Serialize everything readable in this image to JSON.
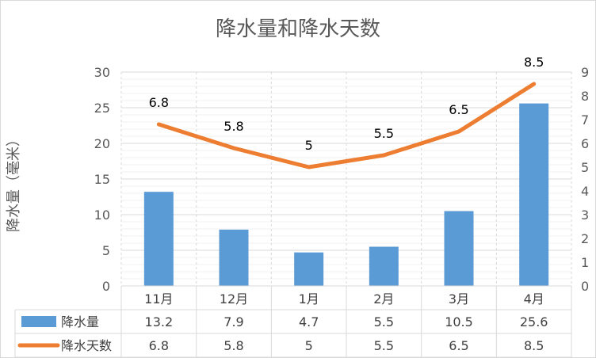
{
  "chart_data": {
    "type": "bar",
    "title": "降水量和降水天数",
    "ylabel": "降水量（毫米）",
    "y2label": "",
    "categories": [
      "11月",
      "12月",
      "1月",
      "2月",
      "3月",
      "4月"
    ],
    "ylim": [
      0,
      30
    ],
    "y2lim": [
      0,
      9
    ],
    "yticks": [
      "0",
      "5",
      "10",
      "15",
      "20",
      "25",
      "30"
    ],
    "y2ticks": [
      "0",
      "1",
      "2",
      "3",
      "4",
      "5",
      "6",
      "7",
      "8",
      "9"
    ],
    "grid": true,
    "legend": "data-table",
    "series": [
      {
        "name": "降水量",
        "type": "bar",
        "axis": "left",
        "color": "#5b9bd5",
        "values": [
          13.2,
          7.9,
          4.7,
          5.5,
          10.5,
          25.6
        ],
        "labels": [
          "13.2",
          "7.9",
          "4.7",
          "5.5",
          "10.5",
          "25.6"
        ]
      },
      {
        "name": "降水天数",
        "type": "line",
        "axis": "right",
        "color": "#ed7d31",
        "values": [
          6.8,
          5.8,
          5,
          5.5,
          6.5,
          8.5
        ],
        "labels": [
          "6.8",
          "5.8",
          "5",
          "5.5",
          "6.5",
          "8.5"
        ]
      }
    ]
  }
}
